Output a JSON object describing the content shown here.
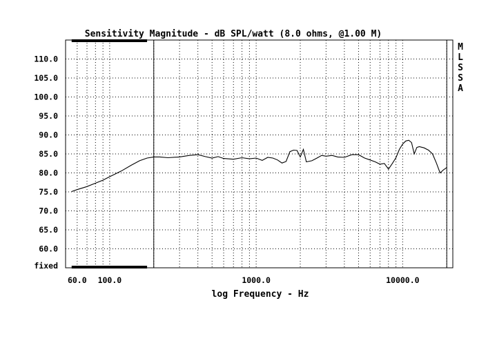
{
  "chart_data": {
    "type": "line",
    "title": "Sensitivity Magnitude - dB SPL/watt (8.0 ohms, @1.00 M)",
    "xlabel": "log Frequency - Hz",
    "ylabel": "",
    "x_scale": "log",
    "xlim": [
      50,
      22000
    ],
    "ylim": [
      55,
      115
    ],
    "x_tick_labels": [
      {
        "value": 60,
        "label": "60.0"
      },
      {
        "value": 100,
        "label": "100.0"
      },
      {
        "value": 1000,
        "label": "1000.0"
      },
      {
        "value": 10000,
        "label": "10000.0"
      }
    ],
    "y_tick_labels": [
      {
        "value": 110,
        "label": "110.0"
      },
      {
        "value": 105,
        "label": "105.0"
      },
      {
        "value": 100,
        "label": "100.0"
      },
      {
        "value": 95,
        "label": "95.0"
      },
      {
        "value": 90,
        "label": "90.0"
      },
      {
        "value": 85,
        "label": "85.0"
      },
      {
        "value": 80,
        "label": "80.0"
      },
      {
        "value": 75,
        "label": "75.0"
      },
      {
        "value": 70,
        "label": "70.0"
      },
      {
        "value": 65,
        "label": "65.0"
      },
      {
        "value": 60,
        "label": "60.0"
      }
    ],
    "y_bottom_label": "fixed",
    "side_label": [
      "M",
      "L",
      "S",
      "S",
      "A"
    ],
    "marker_lines_hz": [
      200,
      20000
    ],
    "band_hz": [
      55,
      180
    ],
    "grid": true,
    "series": [
      {
        "x": [
          55,
          60,
          70,
          80,
          90,
          100,
          120,
          140,
          160,
          180,
          200,
          220,
          250,
          300,
          350,
          400,
          450,
          500,
          550,
          600,
          700,
          800,
          900,
          1000,
          1100,
          1200,
          1300,
          1400,
          1500,
          1600,
          1700,
          1800,
          1900,
          2000,
          2100,
          2200,
          2400,
          2600,
          2800,
          3000,
          3300,
          3600,
          4000,
          4500,
          5000,
          5500,
          6000,
          6500,
          7000,
          7500,
          8000,
          8500,
          9000,
          9500,
          10000,
          10500,
          11000,
          11500,
          12000,
          12500,
          13000,
          14000,
          15000,
          16000,
          17000,
          18000,
          19000,
          20000
        ],
        "y": [
          75.1,
          75.6,
          76.4,
          77.3,
          78.1,
          79.0,
          80.5,
          82.0,
          83.2,
          83.9,
          84.2,
          84.2,
          84.0,
          84.2,
          84.6,
          84.8,
          84.3,
          83.9,
          84.3,
          83.8,
          83.6,
          84.0,
          83.7,
          83.9,
          83.3,
          84.1,
          83.9,
          83.4,
          82.6,
          83.0,
          85.6,
          86.0,
          85.9,
          84.2,
          86.2,
          82.9,
          83.2,
          83.9,
          84.6,
          84.4,
          84.6,
          84.2,
          84.1,
          84.8,
          84.8,
          83.9,
          83.4,
          82.9,
          82.3,
          82.5,
          81.0,
          82.5,
          84.0,
          86.2,
          87.6,
          88.4,
          88.6,
          88.0,
          85.0,
          86.7,
          86.9,
          86.6,
          86.0,
          85.0,
          82.6,
          80.0,
          80.8,
          81.4
        ]
      }
    ]
  }
}
